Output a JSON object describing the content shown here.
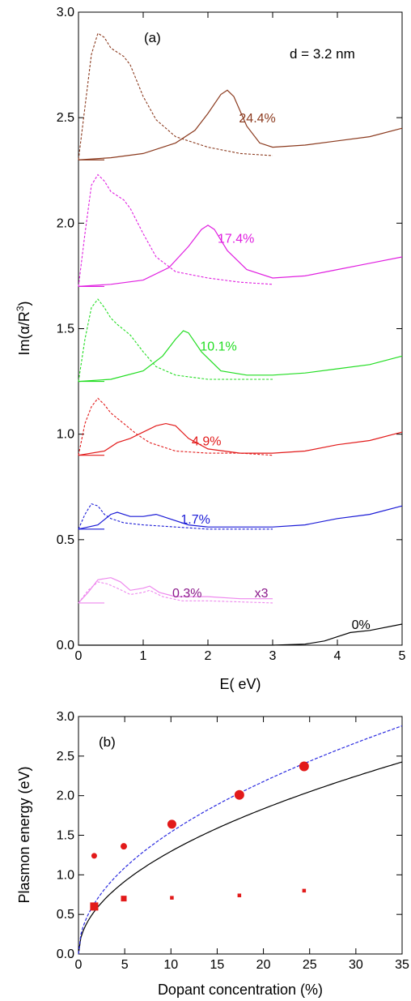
{
  "chart_data": [
    {
      "type": "line",
      "panel_label": "(a)",
      "annotation": "d = 3.2 nm",
      "xlabel": "E( eV)",
      "ylabel_main": "Im(α/R",
      "ylabel_sup": "3",
      "ylabel_close": ")",
      "xlim": [
        0,
        5
      ],
      "ylim": [
        0,
        3
      ],
      "xticks": [
        "0",
        "1",
        "2",
        "3",
        "4",
        "5"
      ],
      "yticks": [
        "0.0",
        "0.5",
        "1.0",
        "1.5",
        "2.0",
        "2.5",
        "3.0"
      ],
      "series": [
        {
          "label": "24.4%",
          "color": "#8b3a1e",
          "baseline": 2.3,
          "label_at": [
            2.48,
            2.5
          ],
          "solid": [
            [
              0,
              2.3
            ],
            [
              0.5,
              2.31
            ],
            [
              1,
              2.33
            ],
            [
              1.5,
              2.38
            ],
            [
              1.8,
              2.44
            ],
            [
              2.0,
              2.52
            ],
            [
              2.2,
              2.61
            ],
            [
              2.3,
              2.63
            ],
            [
              2.4,
              2.6
            ],
            [
              2.6,
              2.46
            ],
            [
              2.8,
              2.38
            ],
            [
              3.0,
              2.36
            ],
            [
              3.5,
              2.37
            ],
            [
              4.0,
              2.39
            ],
            [
              4.5,
              2.41
            ],
            [
              5.0,
              2.45
            ]
          ],
          "dashed": [
            [
              0,
              2.3
            ],
            [
              0.1,
              2.55
            ],
            [
              0.2,
              2.8
            ],
            [
              0.3,
              2.9
            ],
            [
              0.4,
              2.88
            ],
            [
              0.5,
              2.83
            ],
            [
              0.6,
              2.81
            ],
            [
              0.7,
              2.79
            ],
            [
              0.8,
              2.75
            ],
            [
              1.0,
              2.6
            ],
            [
              1.2,
              2.49
            ],
            [
              1.5,
              2.41
            ],
            [
              2.0,
              2.36
            ],
            [
              2.5,
              2.33
            ],
            [
              3.0,
              2.32
            ]
          ]
        },
        {
          "label": "17.4%",
          "color": "#e020e0",
          "baseline": 1.7,
          "label_at": [
            2.15,
            1.93
          ],
          "solid": [
            [
              0,
              1.7
            ],
            [
              0.5,
              1.71
            ],
            [
              1,
              1.73
            ],
            [
              1.4,
              1.79
            ],
            [
              1.7,
              1.89
            ],
            [
              1.9,
              1.97
            ],
            [
              2.0,
              1.99
            ],
            [
              2.1,
              1.97
            ],
            [
              2.3,
              1.87
            ],
            [
              2.6,
              1.78
            ],
            [
              3.0,
              1.74
            ],
            [
              3.5,
              1.75
            ],
            [
              4.0,
              1.78
            ],
            [
              4.5,
              1.81
            ],
            [
              5.0,
              1.84
            ]
          ],
          "dashed": [
            [
              0,
              1.7
            ],
            [
              0.1,
              1.95
            ],
            [
              0.2,
              2.18
            ],
            [
              0.3,
              2.23
            ],
            [
              0.4,
              2.2
            ],
            [
              0.5,
              2.15
            ],
            [
              0.6,
              2.13
            ],
            [
              0.7,
              2.11
            ],
            [
              0.8,
              2.07
            ],
            [
              1.0,
              1.95
            ],
            [
              1.2,
              1.84
            ],
            [
              1.5,
              1.77
            ],
            [
              2.0,
              1.74
            ],
            [
              2.5,
              1.72
            ],
            [
              3.0,
              1.71
            ]
          ]
        },
        {
          "label": "10.1%",
          "color": "#22dd22",
          "baseline": 1.25,
          "label_at": [
            1.88,
            1.42
          ],
          "solid": [
            [
              0,
              1.25
            ],
            [
              0.5,
              1.26
            ],
            [
              1,
              1.3
            ],
            [
              1.3,
              1.37
            ],
            [
              1.5,
              1.45
            ],
            [
              1.62,
              1.49
            ],
            [
              1.7,
              1.48
            ],
            [
              1.9,
              1.39
            ],
            [
              2.2,
              1.3
            ],
            [
              2.6,
              1.28
            ],
            [
              3.0,
              1.28
            ],
            [
              3.5,
              1.29
            ],
            [
              4.0,
              1.31
            ],
            [
              4.5,
              1.33
            ],
            [
              5.0,
              1.37
            ]
          ],
          "dashed": [
            [
              0,
              1.25
            ],
            [
              0.1,
              1.45
            ],
            [
              0.2,
              1.6
            ],
            [
              0.3,
              1.64
            ],
            [
              0.4,
              1.6
            ],
            [
              0.5,
              1.55
            ],
            [
              0.6,
              1.52
            ],
            [
              0.8,
              1.47
            ],
            [
              1.0,
              1.39
            ],
            [
              1.2,
              1.32
            ],
            [
              1.5,
              1.28
            ],
            [
              2.0,
              1.26
            ],
            [
              2.5,
              1.26
            ],
            [
              3.0,
              1.26
            ]
          ]
        },
        {
          "label": "4.9%",
          "color": "#e21a1a",
          "baseline": 0.9,
          "label_at": [
            1.75,
            0.97
          ],
          "solid": [
            [
              0,
              0.9
            ],
            [
              0.4,
              0.92
            ],
            [
              0.6,
              0.96
            ],
            [
              0.8,
              0.98
            ],
            [
              1.0,
              1.01
            ],
            [
              1.2,
              1.04
            ],
            [
              1.35,
              1.05
            ],
            [
              1.5,
              1.04
            ],
            [
              1.7,
              0.98
            ],
            [
              2.0,
              0.93
            ],
            [
              2.5,
              0.91
            ],
            [
              3.0,
              0.91
            ],
            [
              3.5,
              0.92
            ],
            [
              4.0,
              0.95
            ],
            [
              4.5,
              0.97
            ],
            [
              5.0,
              1.01
            ]
          ],
          "dashed": [
            [
              0,
              0.9
            ],
            [
              0.1,
              1.05
            ],
            [
              0.2,
              1.13
            ],
            [
              0.3,
              1.17
            ],
            [
              0.4,
              1.14
            ],
            [
              0.5,
              1.1
            ],
            [
              0.7,
              1.05
            ],
            [
              0.9,
              1.0
            ],
            [
              1.1,
              0.96
            ],
            [
              1.5,
              0.92
            ],
            [
              2.0,
              0.91
            ],
            [
              2.5,
              0.91
            ],
            [
              3.0,
              0.9
            ]
          ]
        },
        {
          "label": "1.7%",
          "color": "#1a1ad6",
          "baseline": 0.55,
          "label_at": [
            1.58,
            0.6
          ],
          "solid": [
            [
              0,
              0.55
            ],
            [
              0.3,
              0.57
            ],
            [
              0.5,
              0.62
            ],
            [
              0.6,
              0.63
            ],
            [
              0.8,
              0.61
            ],
            [
              1.0,
              0.61
            ],
            [
              1.2,
              0.62
            ],
            [
              1.4,
              0.6
            ],
            [
              1.7,
              0.57
            ],
            [
              2.0,
              0.56
            ],
            [
              3.0,
              0.56
            ],
            [
              3.5,
              0.57
            ],
            [
              4.0,
              0.6
            ],
            [
              4.5,
              0.62
            ],
            [
              5.0,
              0.66
            ]
          ],
          "dashed": [
            [
              0,
              0.55
            ],
            [
              0.1,
              0.62
            ],
            [
              0.2,
              0.67
            ],
            [
              0.3,
              0.66
            ],
            [
              0.4,
              0.62
            ],
            [
              0.5,
              0.6
            ],
            [
              0.7,
              0.58
            ],
            [
              1.0,
              0.57
            ],
            [
              1.5,
              0.56
            ],
            [
              2.0,
              0.55
            ],
            [
              3.0,
              0.55
            ]
          ]
        },
        {
          "label": "0.3%",
          "color": "#8b1a8b",
          "curve_color": "#ee88ee",
          "baseline": 0.2,
          "label_at": [
            1.45,
            0.25
          ],
          "note": "x3",
          "note_at": [
            2.72,
            0.25
          ],
          "solid": [
            [
              0,
              0.2
            ],
            [
              0.15,
              0.25
            ],
            [
              0.3,
              0.31
            ],
            [
              0.5,
              0.32
            ],
            [
              0.65,
              0.3
            ],
            [
              0.8,
              0.26
            ],
            [
              1.0,
              0.27
            ],
            [
              1.1,
              0.28
            ],
            [
              1.25,
              0.25
            ],
            [
              1.5,
              0.23
            ],
            [
              2.0,
              0.23
            ],
            [
              2.5,
              0.22
            ],
            [
              3.0,
              0.22
            ]
          ],
          "dashed": [
            [
              0,
              0.2
            ],
            [
              0.15,
              0.26
            ],
            [
              0.3,
              0.3
            ],
            [
              0.45,
              0.29
            ],
            [
              0.6,
              0.27
            ],
            [
              0.8,
              0.24
            ],
            [
              1.0,
              0.25
            ],
            [
              1.1,
              0.26
            ],
            [
              1.3,
              0.23
            ],
            [
              1.6,
              0.21
            ],
            [
              2.0,
              0.21
            ],
            [
              3.0,
              0.2
            ]
          ]
        },
        {
          "label": "0%",
          "color": "#000000",
          "baseline": 0,
          "label_at": [
            4.22,
            0.1
          ],
          "solid": [
            [
              0,
              0
            ],
            [
              3.0,
              0
            ],
            [
              3.5,
              0.005
            ],
            [
              3.8,
              0.02
            ],
            [
              4.0,
              0.04
            ],
            [
              4.2,
              0.06
            ],
            [
              4.5,
              0.07
            ],
            [
              5.0,
              0.1
            ]
          ],
          "dashed": []
        }
      ]
    },
    {
      "type": "scatter",
      "panel_label": "(b)",
      "xlabel": "Dopant concentration (%)",
      "ylabel": "Plasmon energy (eV)",
      "xlim": [
        0,
        35
      ],
      "ylim": [
        0,
        3
      ],
      "xticks": [
        "0",
        "5",
        "10",
        "15",
        "20",
        "25",
        "30",
        "35"
      ],
      "yticks": [
        "0.0",
        "0.5",
        "1.0",
        "1.5",
        "2.0",
        "2.5",
        "3.0"
      ],
      "marker_color": "#e21a1a",
      "circles": [
        {
          "x": 1.7,
          "y": 1.24,
          "r": 3.5
        },
        {
          "x": 4.9,
          "y": 1.36,
          "r": 4
        },
        {
          "x": 10.1,
          "y": 1.64,
          "r": 5.5
        },
        {
          "x": 17.4,
          "y": 2.01,
          "r": 6
        },
        {
          "x": 24.4,
          "y": 2.37,
          "r": 6
        }
      ],
      "squares": [
        {
          "x": 1.7,
          "y": 0.6,
          "s": 10
        },
        {
          "x": 4.9,
          "y": 0.7,
          "s": 7
        },
        {
          "x": 10.1,
          "y": 0.71,
          "s": 4.5
        },
        {
          "x": 17.4,
          "y": 0.74,
          "s": 4.5
        },
        {
          "x": 24.4,
          "y": 0.8,
          "s": 4.5
        }
      ],
      "curves": [
        {
          "style": "solid",
          "color": "#000000",
          "coef": 0.41,
          "exp": 0.5
        },
        {
          "style": "dashed",
          "color": "#2a2ae0",
          "coef": 0.487,
          "exp": 0.5
        }
      ]
    }
  ]
}
